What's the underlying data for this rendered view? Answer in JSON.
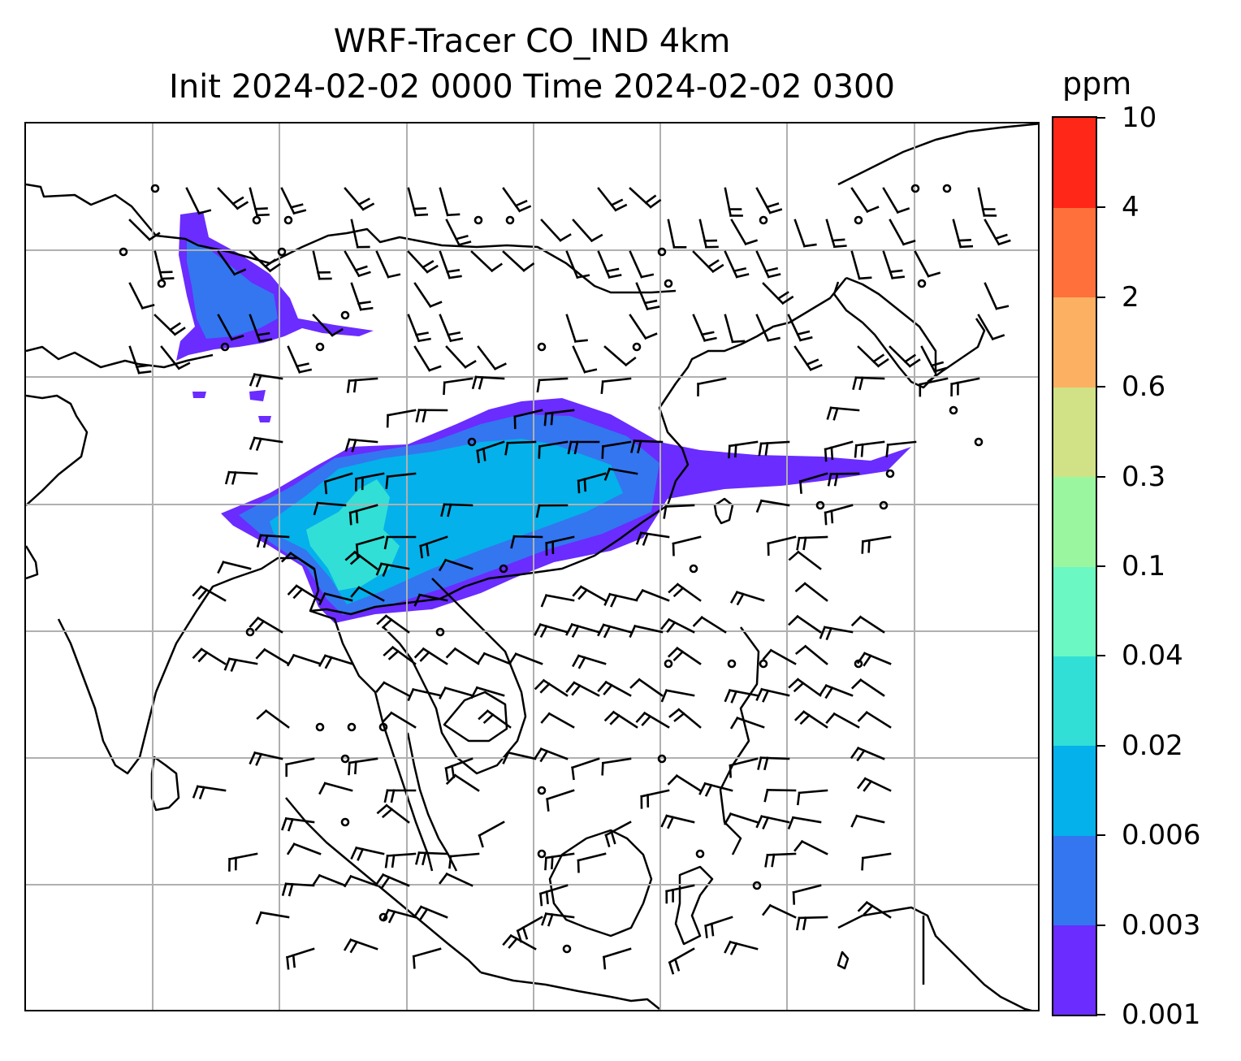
{
  "title": {
    "line1": "WRF-Tracer CO_IND 4km",
    "line2": "Init 2024-02-02 0000 Time 2024-02-02 0300"
  },
  "colorbar": {
    "unit": "ppm",
    "tick_labels": [
      "0.001",
      "0.003",
      "0.006",
      "0.02",
      "0.04",
      "0.1",
      "0.3",
      "0.6",
      "2",
      "4",
      "10"
    ],
    "colors": [
      "#6a2cff",
      "#3376f0",
      "#05b1ea",
      "#31dfd6",
      "#6cf8c3",
      "#9af79f",
      "#d0e285",
      "#fcb062",
      "#ff703a",
      "#ff2818"
    ]
  },
  "map": {
    "gridlines": true,
    "plume_color_low": "#6a2cff",
    "plume_color_mid": "#3376f0",
    "plume_color_high": "#05b1ea",
    "plume_color_peak": "#31dfd6",
    "wind_barbs": true
  }
}
